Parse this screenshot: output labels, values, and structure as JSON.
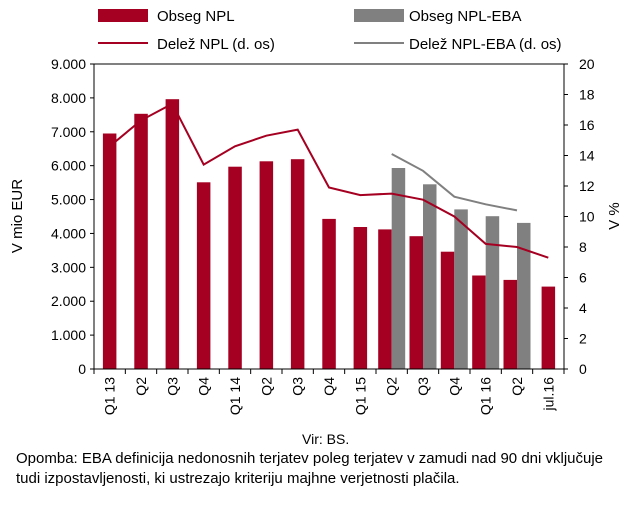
{
  "chart_data": {
    "type": "bar",
    "categories": [
      "Q1 13",
      "Q2",
      "Q3",
      "Q4",
      "Q1 14",
      "Q2",
      "Q3",
      "Q4",
      "Q1 15",
      "Q2",
      "Q3",
      "Q4",
      "Q1 16",
      "Q2",
      "jul.16"
    ],
    "series": [
      {
        "name": "Obseg NPL",
        "kind": "bar",
        "axis": "left",
        "color": "#a50021",
        "values": [
          6950,
          7530,
          7960,
          5510,
          5970,
          6130,
          6190,
          4430,
          4190,
          4120,
          3920,
          3460,
          2760,
          2630,
          2430
        ]
      },
      {
        "name": "Obseg NPL-EBA",
        "kind": "bar",
        "axis": "left",
        "color": "#808080",
        "values": [
          null,
          null,
          null,
          null,
          null,
          null,
          null,
          null,
          null,
          5930,
          5450,
          4710,
          4510,
          4310,
          null
        ]
      },
      {
        "name": "Delež NPL (d. os)",
        "kind": "line",
        "axis": "right",
        "color": "#a50021",
        "values": [
          14.6,
          16.3,
          17.4,
          13.4,
          14.6,
          15.3,
          15.7,
          11.9,
          11.4,
          11.5,
          11.1,
          10.0,
          8.2,
          8.0,
          7.3
        ]
      },
      {
        "name": "Delež NPL-EBA (d. os)",
        "kind": "line",
        "axis": "right",
        "color": "#808080",
        "values": [
          null,
          null,
          null,
          null,
          null,
          null,
          null,
          null,
          null,
          14.1,
          13.0,
          11.3,
          10.8,
          10.4,
          null
        ]
      }
    ],
    "ylabel": "V mio EUR",
    "ylim": [
      0,
      9000
    ],
    "yticks": [
      "0",
      "1.000",
      "2.000",
      "3.000",
      "4.000",
      "5.000",
      "6.000",
      "7.000",
      "8.000",
      "9.000"
    ],
    "y2label": "V %",
    "y2lim": [
      0,
      20
    ],
    "y2ticks": [
      "0",
      "2",
      "4",
      "6",
      "8",
      "10",
      "12",
      "14",
      "16",
      "18",
      "20"
    ],
    "grid": false,
    "legend": "top"
  },
  "source": "Vir: BS.",
  "footnote": "Opomba:  EBA definicija nedonosnih terjatev poleg terjatev v zamudi nad 90 dni vključuje tudi izpostavljenosti, ki ustrezajo kriteriju majhne verjetnosti plačila."
}
